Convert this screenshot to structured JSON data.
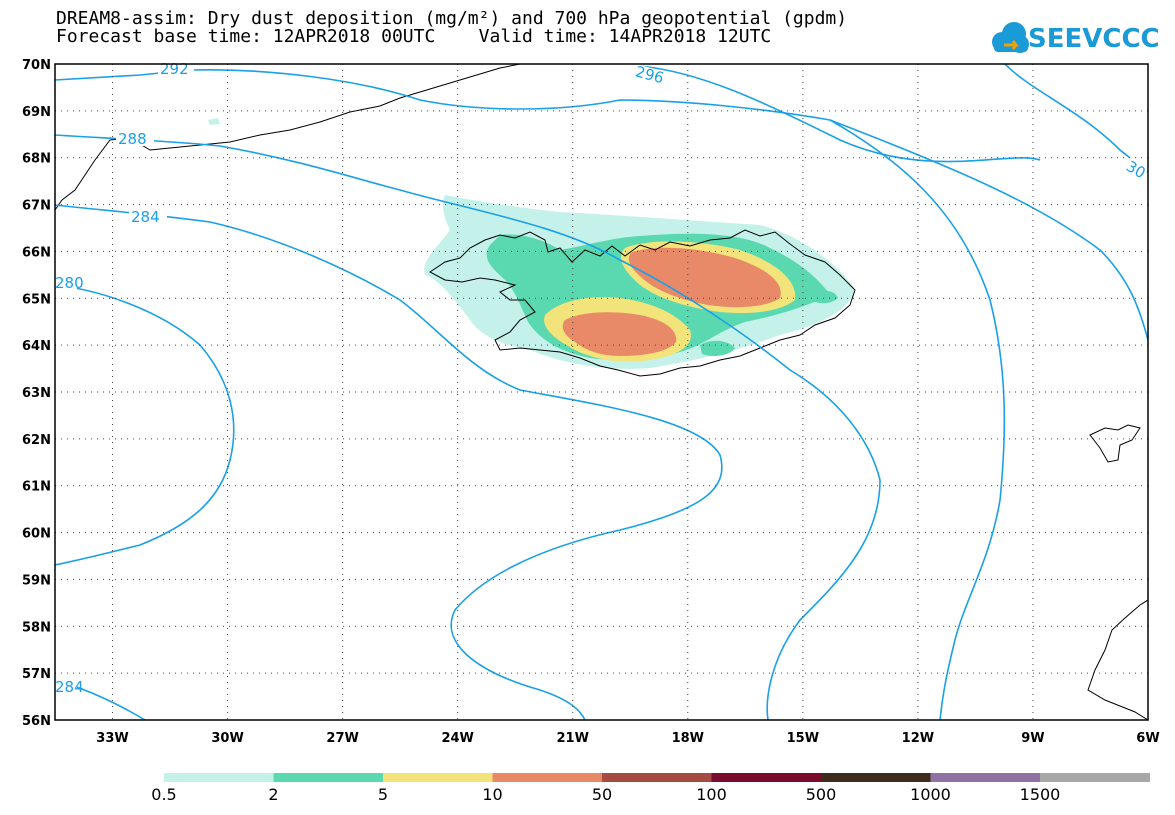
{
  "header": {
    "line1": "DREAM8-assim: Dry dust deposition (mg/m²) and 700 hPa geopotential (gpdm)",
    "line2": "Forecast base time: 12APR2018 00UTC    Valid time: 14APR2018 12UTC"
  },
  "logo": {
    "text": "SEEVCCC",
    "icon": "cloud-icon",
    "color": "#1a9ad6"
  },
  "map": {
    "lat_labels": [
      "70N",
      "69N",
      "68N",
      "67N",
      "66N",
      "65N",
      "64N",
      "63N",
      "62N",
      "61N",
      "60N",
      "59N",
      "58N",
      "57N",
      "56N"
    ],
    "lon_labels": [
      "33W",
      "30W",
      "27W",
      "24W",
      "21W",
      "18W",
      "15W",
      "12W",
      "9W",
      "6W"
    ],
    "lat_range": [
      56,
      70
    ],
    "lon_range": [
      -34.5,
      -6
    ],
    "grid": "dotted",
    "contour_color": "#1aa0e8",
    "contour_labels": [
      "292",
      "296",
      "288",
      "284",
      "280",
      "284",
      "30"
    ]
  },
  "legend": {
    "colors": [
      "#c4f2ea",
      "#5ad8b0",
      "#f2e37a",
      "#e88a68",
      "#a64b44",
      "#7b0b2c",
      "#3d2b1e",
      "#8f72a3",
      "#a8a8a8"
    ],
    "labels": [
      "0.5",
      "2",
      "5",
      "10",
      "50",
      "100",
      "500",
      "1000",
      "1500"
    ]
  }
}
